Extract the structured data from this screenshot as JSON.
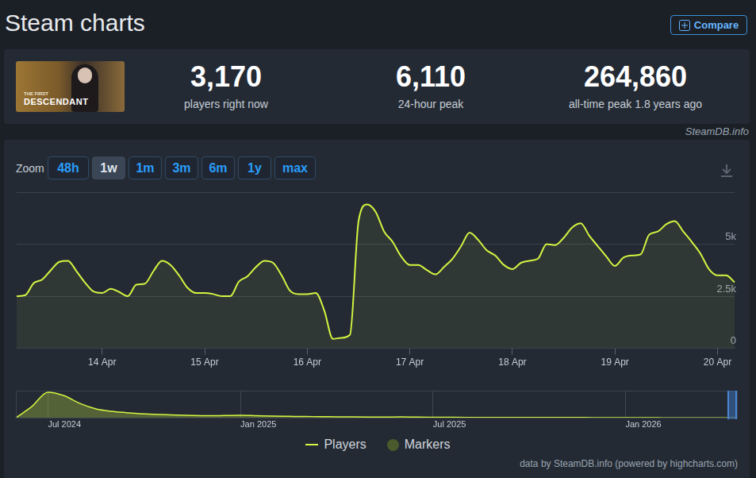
{
  "header": {
    "title": "Steam charts",
    "button": "Compare"
  },
  "thumbnail": {
    "line1": "THE FIRST",
    "line2": "DESCENDANT"
  },
  "stats": [
    {
      "value": "3,170",
      "label": "players right now"
    },
    {
      "value": "6,110",
      "label": "24-hour peak"
    },
    {
      "value": "264,860",
      "label": "all-time peak 1.8 years ago"
    }
  ],
  "source_badge": "SteamDB.info",
  "zoom": {
    "label": "Zoom",
    "buttons": [
      "48h",
      "1w",
      "1m",
      "3m",
      "6m",
      "1y",
      "max"
    ],
    "active": "1w"
  },
  "credit": "data by SteamDB.info (powered by highcharts.com)",
  "chart_data": [
    {
      "type": "area",
      "categories": [
        null,
        null,
        null,
        null,
        null,
        null,
        null,
        null,
        null,
        null,
        "14 Apr",
        null,
        null,
        null,
        null,
        null,
        null,
        null,
        null,
        null,
        null,
        null,
        "15 Apr",
        null,
        null,
        null,
        null,
        null,
        null,
        null,
        null,
        null,
        null,
        null,
        "16 Apr",
        null,
        null,
        null,
        null,
        null,
        null,
        null,
        null,
        null,
        null,
        null,
        "17 Apr",
        null,
        null,
        null,
        null,
        null,
        null,
        null,
        null,
        null,
        null,
        null,
        "18 Apr",
        null,
        null,
        null,
        null,
        null,
        null,
        null,
        null,
        null,
        null,
        null,
        "19 Apr",
        null,
        null,
        null,
        null,
        null,
        null,
        null,
        null,
        null,
        null,
        null,
        "20 Apr",
        null,
        null
      ],
      "series": [
        {
          "name": "Players",
          "color": "#d4f541",
          "values": [
            2500,
            2550,
            3130,
            3300,
            3750,
            4150,
            4200,
            3700,
            3150,
            2720,
            2650,
            2850,
            2700,
            2500,
            3050,
            3100,
            3700,
            4200,
            4000,
            3500,
            2900,
            2650,
            2650,
            2600,
            2500,
            2500,
            3200,
            3450,
            3900,
            4200,
            4100,
            3500,
            2750,
            2600,
            2600,
            2650,
            1800,
            450,
            500,
            650,
            6100,
            6900,
            6550,
            5600,
            5100,
            4400,
            4000,
            4000,
            3750,
            3550,
            3900,
            4300,
            4900,
            5550,
            5200,
            4700,
            4450,
            4000,
            3800,
            4100,
            4200,
            4300,
            5000,
            4950,
            5300,
            5800,
            6000,
            5400,
            4900,
            4400,
            3950,
            4350,
            4450,
            4500,
            5450,
            5600,
            5950,
            6100,
            5600,
            5100,
            4550,
            3800,
            3500,
            3500,
            3170
          ]
        },
        {
          "name": "Markers",
          "color": "#4b5a2c",
          "type": "scatter",
          "values": [
            null,
            null,
            null,
            null,
            null,
            null,
            null,
            null,
            null,
            null,
            null,
            null,
            null,
            null,
            null,
            null,
            null,
            null,
            null,
            null,
            null,
            null,
            null,
            null,
            null,
            null,
            null,
            null,
            null,
            null,
            null,
            null,
            null,
            null,
            null,
            null,
            null,
            null,
            null,
            null,
            null,
            null,
            null,
            null,
            null,
            null,
            null,
            null,
            null,
            null,
            null,
            null,
            null,
            null,
            null,
            null,
            null,
            null,
            null,
            null,
            null,
            null,
            null,
            null,
            null,
            null,
            null,
            null,
            null,
            null,
            null,
            null,
            null,
            null,
            null,
            null,
            null,
            null,
            null,
            null,
            null,
            null,
            null,
            null,
            null
          ]
        }
      ],
      "ylim": [
        0,
        7500
      ],
      "yticks": [
        0,
        {
          "value": 2500,
          "label": "2.5k"
        },
        {
          "value": 5000,
          "label": "5k"
        }
      ],
      "grid": true,
      "legend": "bottom"
    },
    {
      "type": "area",
      "categories": [
        null,
        null,
        "Jul 2024",
        null,
        null,
        null,
        null,
        null,
        null,
        null,
        null,
        null,
        null,
        null,
        "Jan 2025",
        null,
        null,
        null,
        null,
        null,
        null,
        null,
        null,
        null,
        null,
        null,
        "Jul 2025",
        null,
        null,
        null,
        null,
        null,
        null,
        null,
        null,
        null,
        null,
        null,
        "Jan 2026",
        null,
        null,
        null,
        null,
        null,
        null,
        null
      ],
      "values": [
        5000,
        120000,
        264860,
        230000,
        150000,
        95000,
        70000,
        55000,
        45000,
        38000,
        32000,
        28000,
        26000,
        28000,
        30000,
        26000,
        22000,
        20000,
        18000,
        17000,
        15000,
        14000,
        13000,
        12000,
        14000,
        12000,
        11000,
        10000,
        9000,
        9000,
        8500,
        8000,
        7500,
        8000,
        9000,
        8000,
        7000,
        6500,
        6000,
        6000,
        5500,
        5000,
        5000,
        5000,
        4500,
        5000
      ],
      "color": "#d4f541",
      "ylim": [
        0,
        280000
      ],
      "tick_labels": "x",
      "grid": true
    }
  ]
}
